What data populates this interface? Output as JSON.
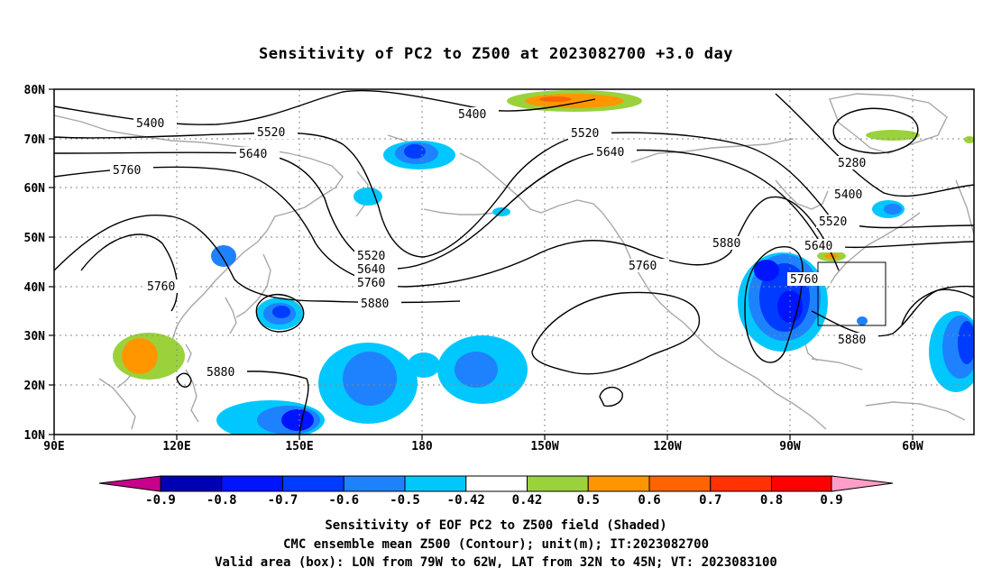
{
  "title": "Sensitivity of PC2 to Z500 at 2023082700 +3.0 day",
  "map": {
    "lon_labels": [
      "90E",
      "120E",
      "150E",
      "180",
      "150W",
      "120W",
      "90W",
      "60W"
    ],
    "lat_labels": [
      "80N",
      "70N",
      "60N",
      "50N",
      "40N",
      "30N",
      "20N",
      "10N"
    ],
    "contour_labels": [
      "5400",
      "5400",
      "5520",
      "5520",
      "5640",
      "5640",
      "5760",
      "5760",
      "5280",
      "5400",
      "5520",
      "5640",
      "5760",
      "5880",
      "5520",
      "5640",
      "5760",
      "5880",
      "5760",
      "5880",
      "5880"
    ],
    "valid_box": {
      "lon_west": -79,
      "lon_east": -62,
      "lat_south": 32,
      "lat_north": 45
    }
  },
  "colorbar": {
    "labels": [
      "-0.9",
      "-0.8",
      "-0.7",
      "-0.6",
      "-0.5",
      "-0.42",
      "0.42",
      "0.5",
      "0.6",
      "0.7",
      "0.8",
      "0.9"
    ],
    "colors": [
      "#c8008c",
      "#0000b4",
      "#0014ff",
      "#003cff",
      "#1e82ff",
      "#00c8ff",
      "#ffffff",
      "#9bd23c",
      "#ff9600",
      "#ff6400",
      "#ff3200",
      "#ff0000",
      "#ff9ec8"
    ]
  },
  "footer": {
    "line1": "Sensitivity of EOF PC2 to Z500 field (Shaded)",
    "line2": "CMC ensemble mean Z500 (Contour); unit(m); IT:2023082700",
    "line3": "Valid area (box): LON from 79W to 62W, LAT from 32N to 45N; VT: 2023083100"
  }
}
